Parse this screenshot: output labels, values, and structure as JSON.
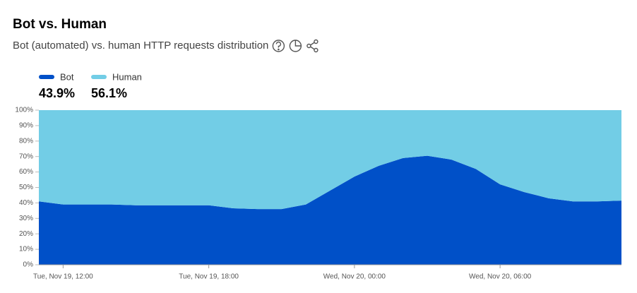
{
  "chart_data": {
    "type": "stacked_area",
    "title": "Bot vs. Human",
    "subtitle": "Bot (automated) vs. human HTTP requests distribution",
    "x": [
      "Tue, Nov 19, 11:00",
      "Tue, Nov 19, 12:00",
      "Tue, Nov 19, 13:00",
      "Tue, Nov 19, 14:00",
      "Tue, Nov 19, 15:00",
      "Tue, Nov 19, 16:00",
      "Tue, Nov 19, 17:00",
      "Tue, Nov 19, 18:00",
      "Tue, Nov 19, 19:00",
      "Tue, Nov 19, 20:00",
      "Tue, Nov 19, 21:00",
      "Tue, Nov 19, 22:00",
      "Tue, Nov 19, 23:00",
      "Wed, Nov 20, 00:00",
      "Wed, Nov 20, 01:00",
      "Wed, Nov 20, 02:00",
      "Wed, Nov 20, 03:00",
      "Wed, Nov 20, 04:00",
      "Wed, Nov 20, 05:00",
      "Wed, Nov 20, 06:00",
      "Wed, Nov 20, 07:00",
      "Wed, Nov 20, 08:00",
      "Wed, Nov 20, 09:00",
      "Wed, Nov 20, 10:00",
      "Wed, Nov 20, 11:00"
    ],
    "series": [
      {
        "name": "Bot",
        "color": "#0050c8",
        "summary": {
          "value": 43.9,
          "label": "43.9%"
        },
        "values": [
          41,
          39,
          39,
          39,
          38.5,
          38.5,
          38.5,
          38.5,
          36.5,
          36,
          36,
          39,
          48,
          57,
          64,
          69,
          70.5,
          68,
          62,
          52,
          47,
          43,
          41,
          41,
          41.5
        ]
      },
      {
        "name": "Human",
        "color": "#72cde6",
        "summary": {
          "value": 56.1,
          "label": "56.1%"
        },
        "values": [
          59,
          61,
          61,
          61,
          61.5,
          61.5,
          61.5,
          61.5,
          63.5,
          64,
          64,
          61,
          52,
          43,
          36,
          31,
          29.5,
          32,
          38,
          48,
          53,
          57,
          59,
          59,
          58.5
        ]
      }
    ],
    "xlim": [
      "Tue, Nov 19, 11:00",
      "Wed, Nov 20, 11:00"
    ],
    "xticks": [
      "Tue, Nov 19, 12:00",
      "Tue, Nov 19, 18:00",
      "Wed, Nov 20, 00:00",
      "Wed, Nov 20, 06:00"
    ],
    "ylim": [
      0,
      100
    ],
    "yticks": [
      {
        "value": 0,
        "label": "0%"
      },
      {
        "value": 10,
        "label": "10%"
      },
      {
        "value": 20,
        "label": "20%"
      },
      {
        "value": 30,
        "label": "30%"
      },
      {
        "value": 40,
        "label": "40%"
      },
      {
        "value": 50,
        "label": "50%"
      },
      {
        "value": 60,
        "label": "60%"
      },
      {
        "value": 70,
        "label": "70%"
      },
      {
        "value": 80,
        "label": "80%"
      },
      {
        "value": 90,
        "label": "90%"
      },
      {
        "value": 100,
        "label": "100%"
      }
    ]
  }
}
